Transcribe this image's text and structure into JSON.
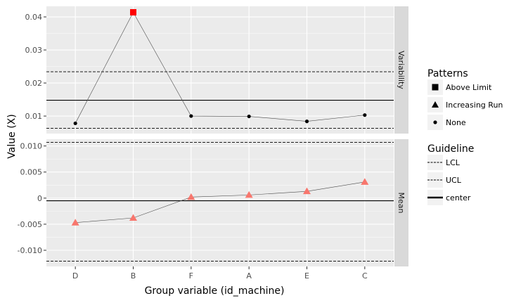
{
  "chart_data": {
    "type": "line",
    "xlabel": "Group variable (id_machine)",
    "ylabel": "Value (X)",
    "categories": [
      "D",
      "B",
      "F",
      "A",
      "E",
      "C"
    ],
    "facets": [
      {
        "name": "Variability",
        "ylim": [
          0.0047,
          0.0432
        ],
        "yticks": [
          0.01,
          0.02,
          0.03,
          0.04
        ],
        "ytick_labels": [
          "0.01",
          "0.02",
          "0.03",
          "0.04"
        ],
        "values": [
          0.0078,
          0.0414,
          0.01,
          0.0099,
          0.0084,
          0.0103
        ],
        "patterns": [
          "None",
          "Above Limit",
          "None",
          "None",
          "None",
          "None"
        ],
        "LCL": 0.0063,
        "UCL": 0.0234,
        "center": 0.0148
      },
      {
        "name": "Mean",
        "ylim": [
          -0.0131,
          0.0113
        ],
        "yticks": [
          -0.01,
          -0.005,
          0,
          0.005,
          0.01
        ],
        "ytick_labels": [
          "-0.010",
          "-0.005",
          "0",
          "0.005",
          "0.010"
        ],
        "values": [
          -0.0047,
          -0.0038,
          0.0002,
          0.0006,
          0.0013,
          0.0031
        ],
        "patterns": [
          "Increasing Run",
          "Increasing Run",
          "Increasing Run",
          "Increasing Run",
          "Increasing Run",
          "Increasing Run"
        ],
        "LCL": -0.0121,
        "UCL": 0.0107,
        "center": -0.0005
      }
    ],
    "legend": {
      "patterns_title": "Patterns",
      "patterns": [
        {
          "label": "Above Limit",
          "shape": "square"
        },
        {
          "label": "Increasing Run",
          "shape": "triangle"
        },
        {
          "label": "None",
          "shape": "circle"
        }
      ],
      "guideline_title": "Guideline",
      "guidelines": [
        {
          "label": "LCL",
          "style": "dashed"
        },
        {
          "label": "UCL",
          "style": "dashed"
        },
        {
          "label": "center",
          "style": "solid"
        }
      ],
      "placement": "right"
    },
    "colors": {
      "panel_bg": "#ebebeb",
      "strip_bg": "#d9d9d9",
      "grid": "#ffffff",
      "above_limit": "#ff0000",
      "increasing_run": "#f8766d",
      "none": "#000000",
      "line": "#4d4d4d"
    },
    "grid": true
  }
}
